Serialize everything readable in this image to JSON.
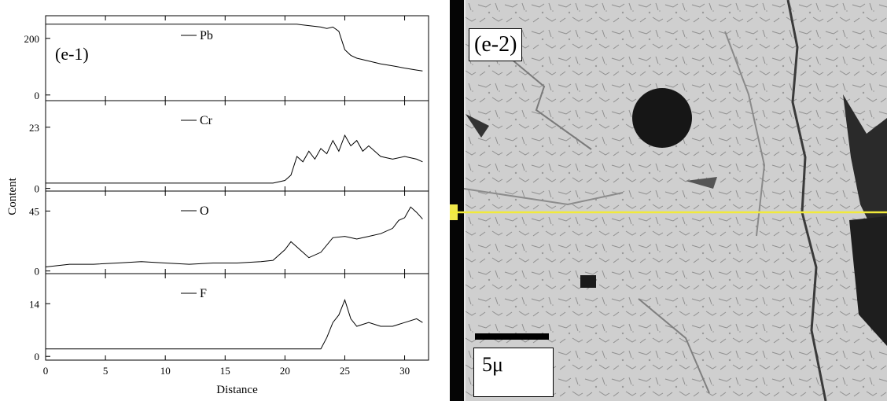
{
  "chart_data": {
    "type": "line",
    "panel_label": "(e-1)",
    "xlabel": "Distance",
    "ylabel": "Content",
    "x_ticks": [
      0,
      5,
      10,
      15,
      20,
      25,
      30
    ],
    "xlim": [
      0,
      32
    ],
    "series": [
      {
        "name": "Pb",
        "yticks": [
          0,
          200
        ],
        "ylim": [
          -20,
          280
        ],
        "x": [
          0,
          2,
          4,
          6,
          8,
          10,
          12,
          14,
          16,
          18,
          19,
          20,
          21,
          22,
          23,
          23.5,
          24,
          24.5,
          25,
          25.5,
          26,
          27,
          28,
          29,
          30,
          31,
          31.5
        ],
        "y": [
          250,
          250,
          250,
          250,
          250,
          250,
          250,
          250,
          250,
          250,
          250,
          250,
          250,
          245,
          240,
          235,
          240,
          225,
          160,
          140,
          130,
          120,
          110,
          103,
          95,
          88,
          85
        ]
      },
      {
        "name": "Cr",
        "yticks": [
          0,
          23
        ],
        "ylim": [
          -1,
          33
        ],
        "x": [
          0,
          2,
          4,
          6,
          8,
          10,
          12,
          14,
          16,
          18,
          19,
          20,
          20.5,
          21,
          21.5,
          22,
          22.5,
          23,
          23.5,
          24,
          24.5,
          25,
          25.5,
          26,
          26.5,
          27,
          28,
          29,
          30,
          31,
          31.5
        ],
        "y": [
          2,
          2,
          2,
          2,
          2,
          2,
          2,
          2,
          2,
          2,
          2,
          3,
          5,
          12,
          10,
          14,
          11,
          15,
          13,
          18,
          14,
          20,
          16,
          18,
          14,
          16,
          12,
          11,
          12,
          11,
          10
        ]
      },
      {
        "name": "O",
        "yticks": [
          0,
          45
        ],
        "ylim": [
          -2,
          60
        ],
        "x": [
          0,
          2,
          4,
          6,
          8,
          10,
          12,
          14,
          16,
          18,
          19,
          20,
          20.5,
          21,
          21.5,
          22,
          23,
          24,
          25,
          26,
          27,
          28,
          29,
          29.5,
          30,
          30.5,
          31,
          31.5
        ],
        "y": [
          3,
          5,
          5,
          6,
          7,
          6,
          5,
          6,
          6,
          7,
          8,
          16,
          22,
          18,
          14,
          10,
          14,
          25,
          26,
          24,
          26,
          28,
          32,
          38,
          40,
          48,
          44,
          39
        ]
      },
      {
        "name": "F",
        "yticks": [
          0,
          14
        ],
        "ylim": [
          -1,
          22
        ],
        "x": [
          0,
          2,
          4,
          6,
          8,
          10,
          12,
          14,
          16,
          18,
          20,
          22,
          23,
          23.5,
          24,
          24.5,
          25,
          25.5,
          26,
          27,
          28,
          29,
          30,
          31,
          31.5
        ],
        "y": [
          2,
          2,
          2,
          2,
          2,
          2,
          2,
          2,
          2,
          2,
          2,
          2,
          2,
          5,
          9,
          11,
          15,
          10,
          8,
          9,
          8,
          8,
          9,
          10,
          9
        ]
      }
    ]
  },
  "micrograph": {
    "label": "(e-2)",
    "scale_text": "5μ"
  }
}
